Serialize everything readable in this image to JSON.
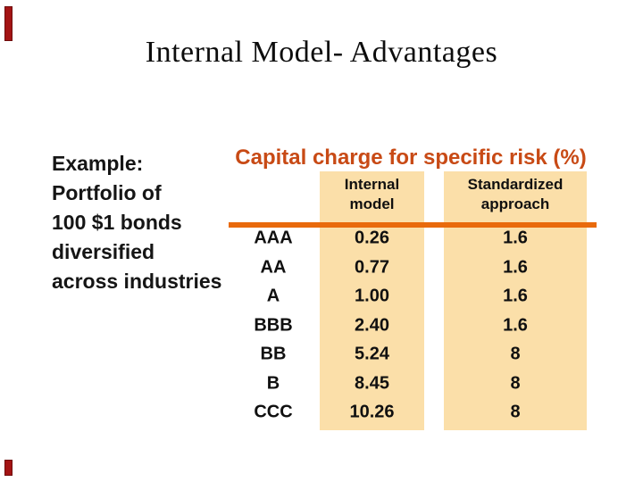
{
  "slide": {
    "title": "Internal Model- Advantages"
  },
  "example_block": {
    "lines": [
      "Example:",
      "Portfolio of",
      "100 $1 bonds",
      "diversified",
      "across industries"
    ]
  },
  "table": {
    "heading": "Capital charge for specific risk (%)",
    "columns": [
      {
        "label_line1": "Internal",
        "label_line2": "model"
      },
      {
        "label_line1": "Standardized",
        "label_line2": "approach"
      }
    ],
    "rows": [
      {
        "rating": "AAA",
        "internal": "0.26",
        "standardized": "1.6"
      },
      {
        "rating": "AA",
        "internal": "0.77",
        "standardized": "1.6"
      },
      {
        "rating": "A",
        "internal": "1.00",
        "standardized": "1.6"
      },
      {
        "rating": "BBB",
        "internal": "2.40",
        "standardized": "1.6"
      },
      {
        "rating": "BB",
        "internal": "5.24",
        "standardized": "8"
      },
      {
        "rating": "B",
        "internal": "8.45",
        "standardized": "8"
      },
      {
        "rating": "CCC",
        "internal": "10.26",
        "standardized": "8"
      }
    ]
  },
  "colors": {
    "heading_text": "#c84a15",
    "divider_orange": "#e96a0c",
    "column_fill": "#fbdfa9",
    "corner_mark_red": "#a31414",
    "body_text": "#101010"
  }
}
